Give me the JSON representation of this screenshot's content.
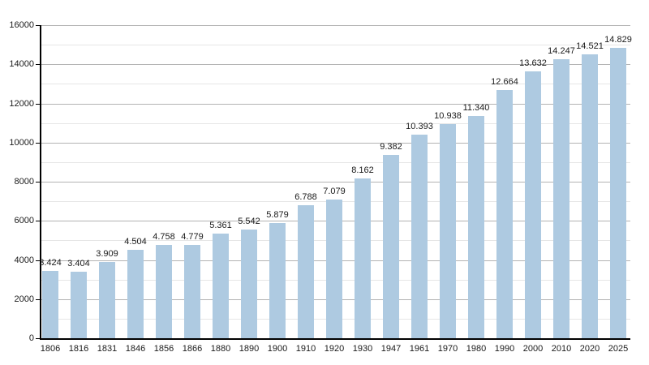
{
  "chart_data": {
    "type": "bar",
    "title": "",
    "xlabel": "",
    "ylabel": "",
    "categories": [
      "1806",
      "1816",
      "1831",
      "1846",
      "1856",
      "1866",
      "1880",
      "1890",
      "1900",
      "1910",
      "1920",
      "1930",
      "1947",
      "1961",
      "1970",
      "1980",
      "1990",
      "2000",
      "2010",
      "2020",
      "2025"
    ],
    "values": [
      3424,
      3404,
      3909,
      4504,
      4758,
      4779,
      5361,
      5542,
      5879,
      6788,
      7079,
      8162,
      9382,
      10393,
      10938,
      11340,
      12664,
      13632,
      14247,
      14521,
      14829
    ],
    "value_labels": [
      "3.424",
      "3.404",
      "3.909",
      "4.504",
      "4.758",
      "4.779",
      "5.361",
      "5.542",
      "5.879",
      "6.788",
      "7.079",
      "8.162",
      "9.382",
      "10.393",
      "10.938",
      "11.340",
      "12.664",
      "13.632",
      "14.247",
      "14.521",
      "14.829"
    ],
    "ylim": [
      0,
      16000
    ],
    "ytick_step": 2000,
    "minor_tick_step": 1000,
    "ytick_labels": [
      "0",
      "2000",
      "4000",
      "6000",
      "8000",
      "10000",
      "12000",
      "14000",
      "16000"
    ],
    "grid": true,
    "legend": "none",
    "colors": {
      "bar_fill": "#aecae1",
      "grid_major": "#b3b3b3",
      "grid_minor": "#e6e6e6",
      "axis": "#000000",
      "text": "#1a1a1a",
      "background": "#ffffff"
    }
  }
}
